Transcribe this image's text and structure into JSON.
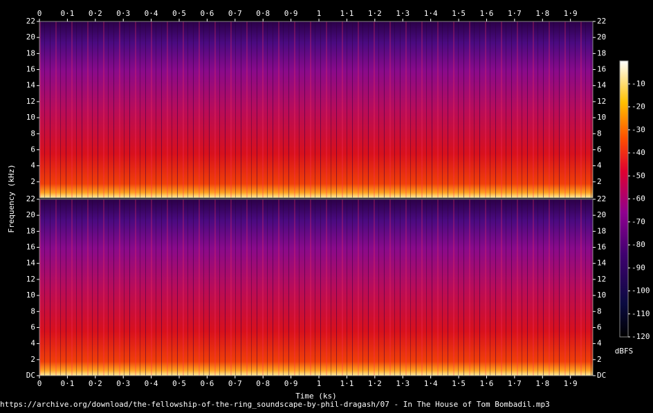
{
  "chart_data": [
    {
      "type": "spectrogram",
      "x_axis": "top",
      "ylabel": "Frequency (kHz)",
      "xlim": [
        0,
        1.98
      ],
      "ylim": [
        0,
        22
      ],
      "xticks": [
        0,
        {
          "value": 0.1,
          "label": "0·1"
        },
        {
          "value": 0.2,
          "label": "0·2"
        },
        {
          "value": 0.3,
          "label": "0·3"
        },
        {
          "value": 0.4,
          "label": "0·4"
        },
        {
          "value": 0.5,
          "label": "0·5"
        },
        {
          "value": 0.6,
          "label": "0·6"
        },
        {
          "value": 0.7,
          "label": "0·7"
        },
        {
          "value": 0.8,
          "label": "0·8"
        },
        {
          "value": 0.9,
          "label": "0·9"
        },
        1,
        {
          "value": 1.1,
          "label": "1·1"
        },
        {
          "value": 1.2,
          "label": "1·2"
        },
        {
          "value": 1.3,
          "label": "1·3"
        },
        {
          "value": 1.4,
          "label": "1·4"
        },
        {
          "value": 1.5,
          "label": "1·5"
        },
        {
          "value": 1.6,
          "label": "1·6"
        },
        {
          "value": 1.7,
          "label": "1·7"
        },
        {
          "value": 1.8,
          "label": "1·8"
        },
        {
          "value": 1.9,
          "label": "1·9"
        }
      ],
      "yticks": [
        2,
        4,
        6,
        8,
        10,
        12,
        14,
        16,
        18,
        20,
        22
      ]
    },
    {
      "type": "spectrogram",
      "x_axis": "bottom",
      "xlabel": "Time (ks)",
      "xlim": [
        0,
        1.98
      ],
      "ylim": [
        0,
        22
      ],
      "xticks": [
        0,
        {
          "value": 0.1,
          "label": "0·1"
        },
        {
          "value": 0.2,
          "label": "0·2"
        },
        {
          "value": 0.3,
          "label": "0·3"
        },
        {
          "value": 0.4,
          "label": "0·4"
        },
        {
          "value": 0.5,
          "label": "0·5"
        },
        {
          "value": 0.6,
          "label": "0·6"
        },
        {
          "value": 0.7,
          "label": "0·7"
        },
        {
          "value": 0.8,
          "label": "0·8"
        },
        {
          "value": 0.9,
          "label": "0·9"
        },
        1,
        {
          "value": 1.1,
          "label": "1·1"
        },
        {
          "value": 1.2,
          "label": "1·2"
        },
        {
          "value": 1.3,
          "label": "1·3"
        },
        {
          "value": 1.4,
          "label": "1·4"
        },
        {
          "value": 1.5,
          "label": "1·5"
        },
        {
          "value": 1.6,
          "label": "1·6"
        },
        {
          "value": 1.7,
          "label": "1·7"
        },
        {
          "value": 1.8,
          "label": "1·8"
        },
        {
          "value": 1.9,
          "label": "1·9"
        }
      ],
      "yticks": [
        {
          "value": 0,
          "label": "DC"
        },
        2,
        4,
        6,
        8,
        10,
        12,
        14,
        16,
        18,
        20,
        22
      ]
    }
  ],
  "colorbar": {
    "label": "dBFS",
    "lim": [
      -120,
      0
    ],
    "ticks": [
      -10,
      -20,
      -30,
      -40,
      -50,
      -60,
      -70,
      -80,
      -90,
      -100,
      -110,
      -120
    ]
  },
  "caption": "https://archive.org/download/the-fellowship-of-the-ring_soundscape-by-phil-dragash/07 - In The House of Tom Bombadil.mp3"
}
